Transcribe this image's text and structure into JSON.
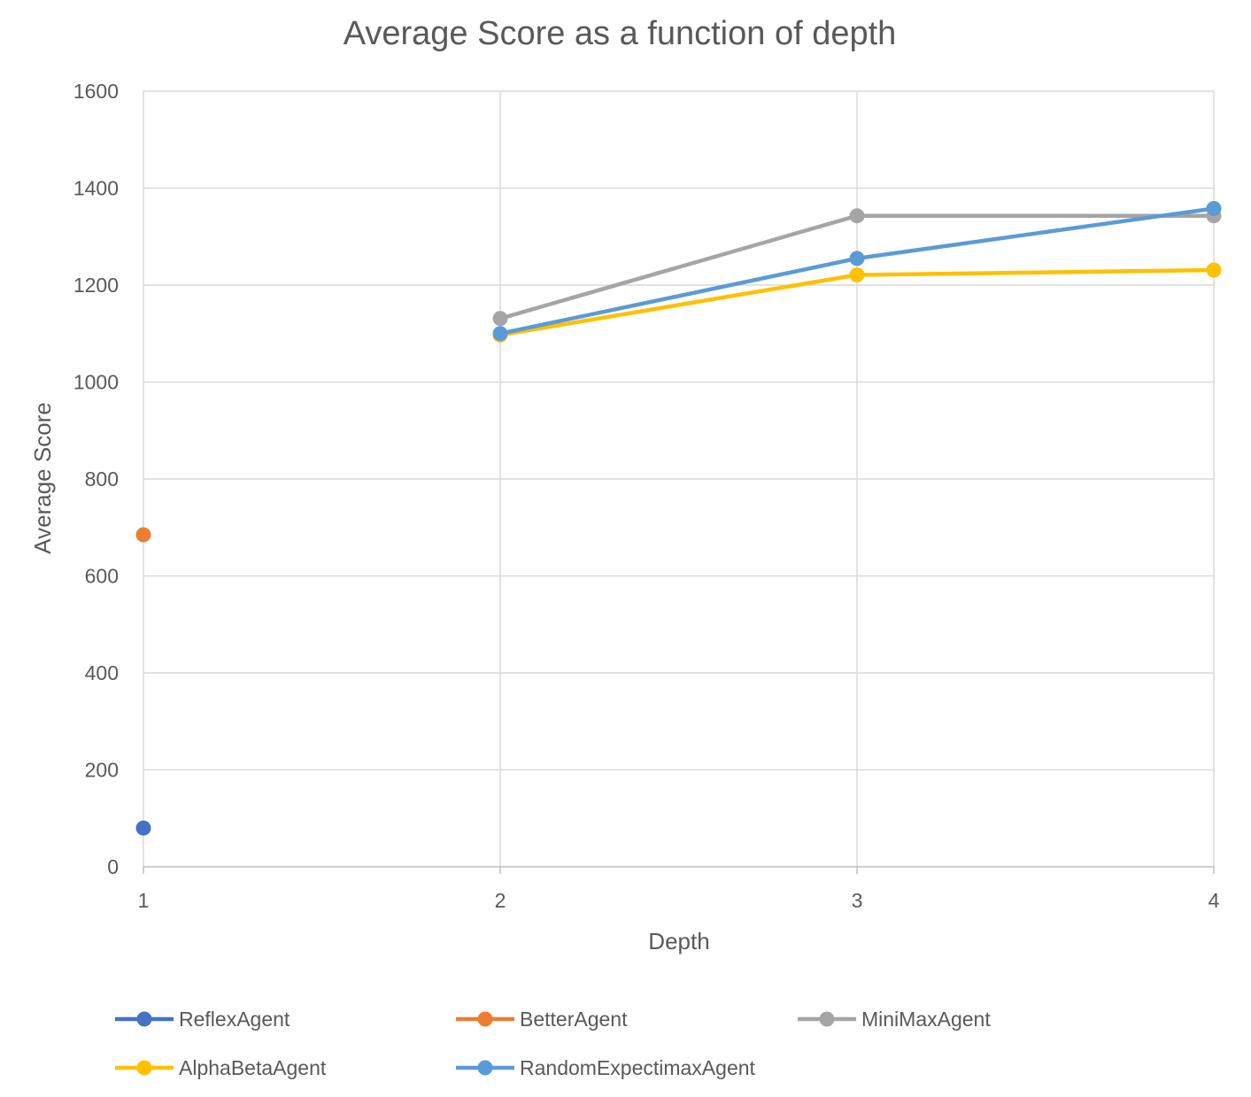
{
  "chart_data": {
    "type": "line",
    "title": "Average Score as a function of depth",
    "xlabel": "Depth",
    "ylabel": "Average Score",
    "categories": [
      "1",
      "2",
      "3",
      "4"
    ],
    "ylim": [
      0,
      1600
    ],
    "yticks": [
      0,
      200,
      400,
      600,
      800,
      1000,
      1200,
      1400,
      1600
    ],
    "grid": true,
    "legend_position": "bottom",
    "series": [
      {
        "name": "ReflexAgent",
        "color": "#4472C4",
        "values": [
          80,
          null,
          null,
          null
        ]
      },
      {
        "name": "BetterAgent",
        "color": "#ED7D31",
        "values": [
          685,
          null,
          null,
          null
        ]
      },
      {
        "name": "MiniMaxAgent",
        "color": "#A5A5A5",
        "values": [
          null,
          1131,
          1343,
          1343
        ]
      },
      {
        "name": "AlphaBetaAgent",
        "color": "#FFC000",
        "values": [
          null,
          1097,
          1221,
          1231
        ]
      },
      {
        "name": "RandomExpectimaxAgent",
        "color": "#5B9BD5",
        "values": [
          null,
          1100,
          1255,
          1358
        ]
      }
    ]
  }
}
